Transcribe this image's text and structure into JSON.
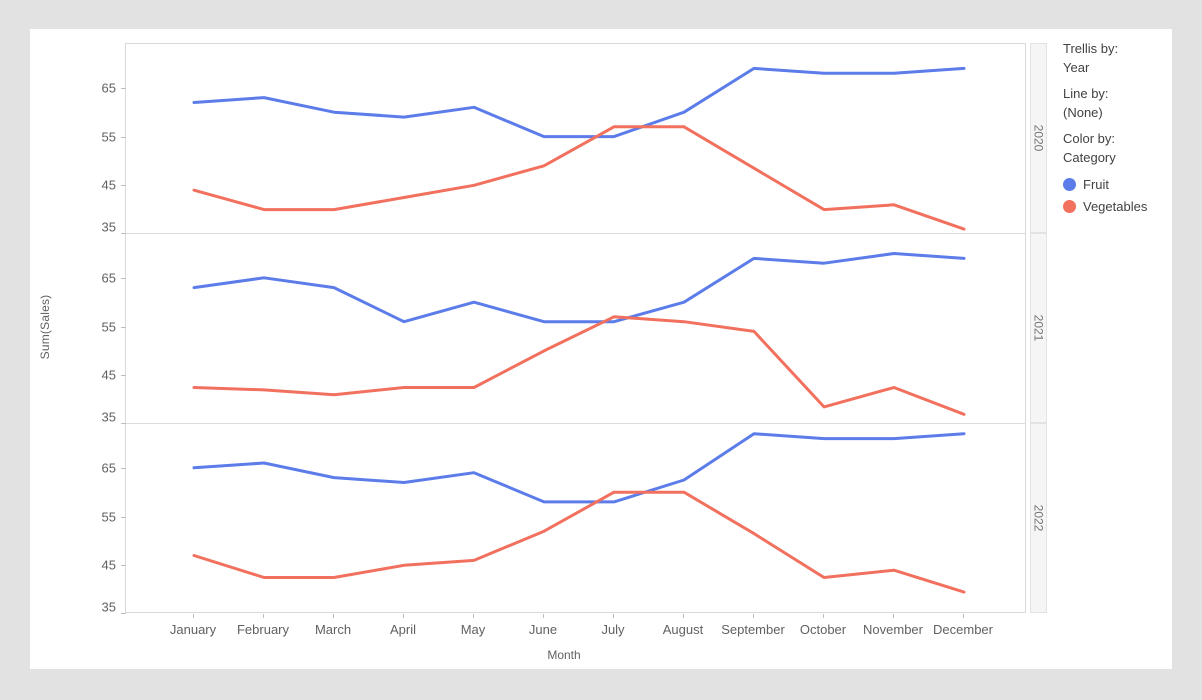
{
  "page": {
    "background_color": "#e2e2e2",
    "card_background_color": "#ffffff"
  },
  "legend": {
    "trellis_by_label": "Trellis by:",
    "trellis_by_value": "Year",
    "line_by_label": "Line by:",
    "line_by_value": "(None)",
    "color_by_label": "Color by:",
    "color_by_value": "Category",
    "items": [
      {
        "label": "Fruit",
        "color": "#5c7cea"
      },
      {
        "label": "Vegetables",
        "color": "#f2705e"
      }
    ]
  },
  "chart_data": {
    "type": "line",
    "title": "",
    "xlabel": "Month",
    "ylabel": "Sum(Sales)",
    "categories": [
      "January",
      "February",
      "March",
      "April",
      "May",
      "June",
      "July",
      "August",
      "September",
      "October",
      "November",
      "December"
    ],
    "y_ticks": [
      65,
      55,
      45,
      35
    ],
    "ylim": [
      35,
      74
    ],
    "grid": false,
    "legend_position": "right",
    "trellis_by": "Year",
    "panels": [
      {
        "trellis_label": "2020",
        "series": [
          {
            "name": "Fruit",
            "color": "#5c7cea",
            "values": [
              62,
              63,
              60,
              59,
              61,
              55,
              55,
              60,
              69,
              68,
              68,
              69
            ]
          },
          {
            "name": "Vegetables",
            "color": "#f2705e",
            "values": [
              44,
              40,
              40,
              42.5,
              45,
              49,
              57,
              57,
              48.5,
              40,
              41,
              36
            ]
          }
        ]
      },
      {
        "trellis_label": "2021",
        "series": [
          {
            "name": "Fruit",
            "color": "#5c7cea",
            "values": [
              63,
              65,
              63,
              56,
              60,
              56,
              56,
              60,
              69,
              68,
              70,
              69
            ]
          },
          {
            "name": "Vegetables",
            "color": "#f2705e",
            "values": [
              42.5,
              42,
              41,
              42.5,
              42.5,
              50,
              57,
              56,
              54,
              38.5,
              42.5,
              37
            ]
          }
        ]
      },
      {
        "trellis_label": "2022",
        "series": [
          {
            "name": "Fruit",
            "color": "#5c7cea",
            "values": [
              65,
              66,
              63,
              62,
              64,
              58,
              58,
              62.5,
              72,
              71,
              71,
              72
            ]
          },
          {
            "name": "Vegetables",
            "color": "#f2705e",
            "values": [
              47,
              42.5,
              42.5,
              45,
              46,
              52,
              60,
              60,
              51.5,
              42.5,
              44,
              39.5
            ]
          }
        ]
      }
    ]
  }
}
